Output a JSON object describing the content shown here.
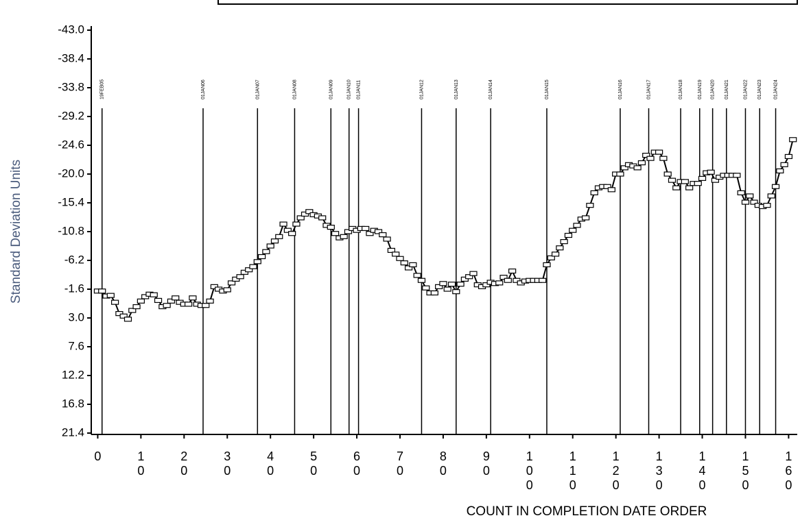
{
  "chart_data": {
    "type": "line",
    "y_label": "Standard Deviation Units",
    "x_label": "COUNT IN COMPLETION DATE ORDER",
    "x": [
      0,
      1,
      2,
      3,
      4,
      5,
      6,
      7,
      8,
      9,
      10,
      11,
      12,
      13,
      14,
      15,
      16,
      17,
      18,
      19,
      20,
      21,
      22,
      23,
      24,
      25,
      26,
      27,
      28,
      29,
      30,
      31,
      32,
      33,
      34,
      35,
      36,
      37,
      38,
      39,
      40,
      41,
      42,
      43,
      44,
      45,
      46,
      47,
      48,
      49,
      50,
      51,
      52,
      53,
      54,
      55,
      56,
      57,
      58,
      59,
      60,
      61,
      62,
      63,
      64,
      65,
      66,
      67,
      68,
      69,
      70,
      71,
      72,
      73,
      74,
      75,
      76,
      77,
      78,
      79,
      80,
      81,
      82,
      83,
      84,
      85,
      86,
      87,
      88,
      89,
      90,
      91,
      92,
      93,
      94,
      95,
      96,
      97,
      98,
      99,
      100,
      101,
      102,
      103,
      104,
      105,
      106,
      107,
      108,
      109,
      110,
      111,
      112,
      113,
      114,
      115,
      116,
      117,
      118,
      119,
      120,
      121,
      122,
      123,
      124,
      125,
      126,
      127,
      128,
      129,
      130,
      131,
      132,
      133,
      134,
      135,
      136,
      137,
      138,
      139,
      140,
      141,
      142,
      143,
      144,
      145,
      146,
      147,
      148,
      149,
      150,
      151,
      152,
      153,
      154,
      155,
      156,
      157,
      158,
      159,
      160,
      161
    ],
    "series": [
      {
        "color": "#000000",
        "values": [
          -1.3,
          -1.3,
          -0.5,
          -0.6,
          0.5,
          2.3,
          2.7,
          3.2,
          1.8,
          1.2,
          0.3,
          -0.4,
          -0.8,
          -0.7,
          0.2,
          1.2,
          1.0,
          0.3,
          -0.2,
          0.5,
          0.8,
          0.8,
          -0.2,
          0.8,
          1.0,
          1.0,
          0.3,
          -2.0,
          -1.6,
          -1.3,
          -1.5,
          -2.6,
          -3.2,
          -3.6,
          -4.3,
          -4.7,
          -5.2,
          -6.0,
          -6.8,
          -7.6,
          -8.5,
          -9.3,
          -10.0,
          -12.0,
          -11.0,
          -10.5,
          -12.0,
          -13.0,
          -13.6,
          -14.0,
          -13.5,
          -13.3,
          -13.0,
          -11.8,
          -11.5,
          -10.5,
          -9.8,
          -10.0,
          -10.8,
          -11.3,
          -11.0,
          -11.3,
          -11.3,
          -10.5,
          -11.0,
          -10.8,
          -10.3,
          -9.6,
          -7.8,
          -7.2,
          -6.5,
          -5.8,
          -5.0,
          -5.5,
          -3.8,
          -3.0,
          -1.8,
          -1.0,
          -1.0,
          -2.0,
          -2.5,
          -1.6,
          -2.4,
          -1.2,
          -2.4,
          -3.2,
          -3.6,
          -4.1,
          -2.3,
          -2.0,
          -2.3,
          -2.7,
          -2.5,
          -2.6,
          -3.5,
          -3.0,
          -4.5,
          -3.0,
          -2.6,
          -2.9,
          -3.0,
          -3.0,
          -3.0,
          -3.0,
          -5.5,
          -6.6,
          -7.2,
          -8.2,
          -9.2,
          -10.2,
          -11.0,
          -11.8,
          -12.8,
          -13.0,
          -15.0,
          -17.0,
          -17.8,
          -18.0,
          -18.0,
          -17.5,
          -20.0,
          -20.0,
          -21.0,
          -21.5,
          -21.3,
          -21.0,
          -21.8,
          -23.0,
          -22.5,
          -23.5,
          -23.5,
          -22.5,
          -20.0,
          -19.0,
          -17.8,
          -18.8,
          -18.8,
          -17.8,
          -18.5,
          -18.5,
          -19.3,
          -20.2,
          -20.3,
          -19.0,
          -19.5,
          -19.8,
          -19.8,
          -19.8,
          -19.8,
          -17.0,
          -15.5,
          -16.5,
          -15.5,
          -15.0,
          -14.8,
          -15.0,
          -16.5,
          -18.0,
          -20.5,
          -21.5,
          -22.8,
          -25.5
        ]
      }
    ],
    "xlim": [
      -1.5,
      162
    ],
    "xticks": [
      0,
      10,
      20,
      30,
      40,
      50,
      60,
      70,
      80,
      90,
      100,
      110,
      120,
      130,
      140,
      150,
      160
    ],
    "ylim": [
      21.4,
      -43.0
    ],
    "yticks": [
      {
        "value": -43.0,
        "label": "-43.0"
      },
      -38.4,
      -33.8,
      -29.2,
      -24.6,
      {
        "value": -20.0,
        "label": "-20.0"
      },
      -15.4,
      -10.8,
      -6.2,
      -1.6,
      {
        "value": 3.0,
        "label": "3.0"
      },
      7.6,
      12.2,
      16.8,
      21.4
    ],
    "annotations": [
      {
        "x": 1,
        "label": "19FEB05"
      },
      {
        "x": 24.4,
        "label": "01JAN06"
      },
      {
        "x": 37,
        "label": "01JAN07"
      },
      {
        "x": 45.6,
        "label": "01JAN08"
      },
      {
        "x": 54,
        "label": "01JAN09"
      },
      {
        "x": 58.2,
        "label": "01JAN10"
      },
      {
        "x": 60.4,
        "label": "01JAN11"
      },
      {
        "x": 75,
        "label": "01JAN12"
      },
      {
        "x": 83,
        "label": "01JAN13"
      },
      {
        "x": 91,
        "label": "01JAN14"
      },
      {
        "x": 104,
        "label": "01JAN15"
      },
      {
        "x": 121,
        "label": "01JAN16"
      },
      {
        "x": 127.6,
        "label": "01JAN17"
      },
      {
        "x": 135,
        "label": "01JAN18"
      },
      {
        "x": 139.4,
        "label": "01JAN19"
      },
      {
        "x": 142.4,
        "label": "01JAN20"
      },
      {
        "x": 145.6,
        "label": "01JAN21"
      },
      {
        "x": 150,
        "label": "01JAN22"
      },
      {
        "x": 153.3,
        "label": "01JAN23"
      },
      {
        "x": 157,
        "label": "01JAN24"
      }
    ]
  }
}
